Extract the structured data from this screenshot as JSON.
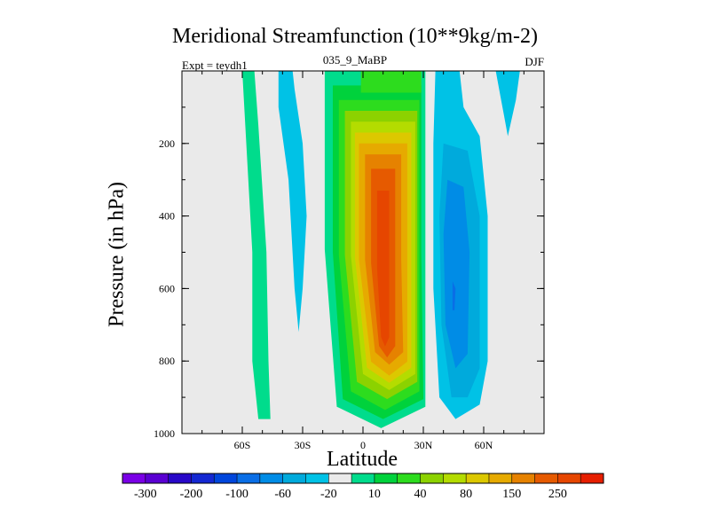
{
  "chart_data": {
    "type": "contour",
    "title": "Meridional Streamfunction (10**9kg/m-2)",
    "experiment": "Expt = teydh1",
    "case": "035_9_MaBP",
    "season": "DJF",
    "xlabel": "Latitude",
    "ylabel": "Pressure (in hPa)",
    "xlim": [
      -90,
      90
    ],
    "ylim": [
      0,
      1000
    ],
    "x_ticks": [
      {
        "value": -60,
        "label": "60S"
      },
      {
        "value": -30,
        "label": "30S"
      },
      {
        "value": 0,
        "label": "0"
      },
      {
        "value": 30,
        "label": "30N"
      },
      {
        "value": 60,
        "label": "60N"
      }
    ],
    "y_ticks": [
      {
        "value": 200,
        "label": "200"
      },
      {
        "value": 400,
        "label": "400"
      },
      {
        "value": 600,
        "label": "600"
      },
      {
        "value": 800,
        "label": "800"
      },
      {
        "value": 1000,
        "label": "1000"
      }
    ],
    "colorbar": {
      "levels": [
        "-300",
        "-200",
        "-100",
        "-60",
        "-20",
        "10",
        "40",
        "80",
        "150",
        "250"
      ],
      "colors": [
        "#7a00e6",
        "#5a00d2",
        "#2808c8",
        "#1428d2",
        "#0046dc",
        "#0a6ee6",
        "#008ce6",
        "#00aadc",
        "#00c2e6",
        "#eaeaea",
        "#00dc8c",
        "#00d23c",
        "#2ddc1e",
        "#8cd200",
        "#b4dc00",
        "#dcc800",
        "#e6aa00",
        "#e68200",
        "#e65a00",
        "#e64600",
        "#e61e00"
      ]
    },
    "regions": [
      {
        "name": "sh-subtropical-cell",
        "value": 15,
        "level_index": 10,
        "lat_range": [
          -57,
          -47
        ],
        "p_range": [
          0,
          960
        ]
      },
      {
        "name": "sh-upper-negative",
        "value": -15,
        "level_index": 8,
        "lat_range": [
          -42,
          -25
        ],
        "p_range": [
          0,
          720
        ]
      },
      {
        "name": "hadley-cell",
        "value": 220,
        "level_index": 18,
        "lat_range": [
          -18,
          30
        ],
        "p_range": [
          0,
          985
        ],
        "core": {
          "lat": 10,
          "p": 600
        }
      },
      {
        "name": "nh-negative-cell",
        "value": -60,
        "level_index": 5,
        "lat_range": [
          35,
          62
        ],
        "p_range": [
          0,
          960
        ],
        "core": {
          "lat": 45,
          "p": 620
        }
      },
      {
        "name": "nh-polar-negative",
        "value": -15,
        "level_index": 8,
        "lat_range": [
          62,
          78
        ],
        "p_range": [
          0,
          200
        ]
      }
    ]
  }
}
